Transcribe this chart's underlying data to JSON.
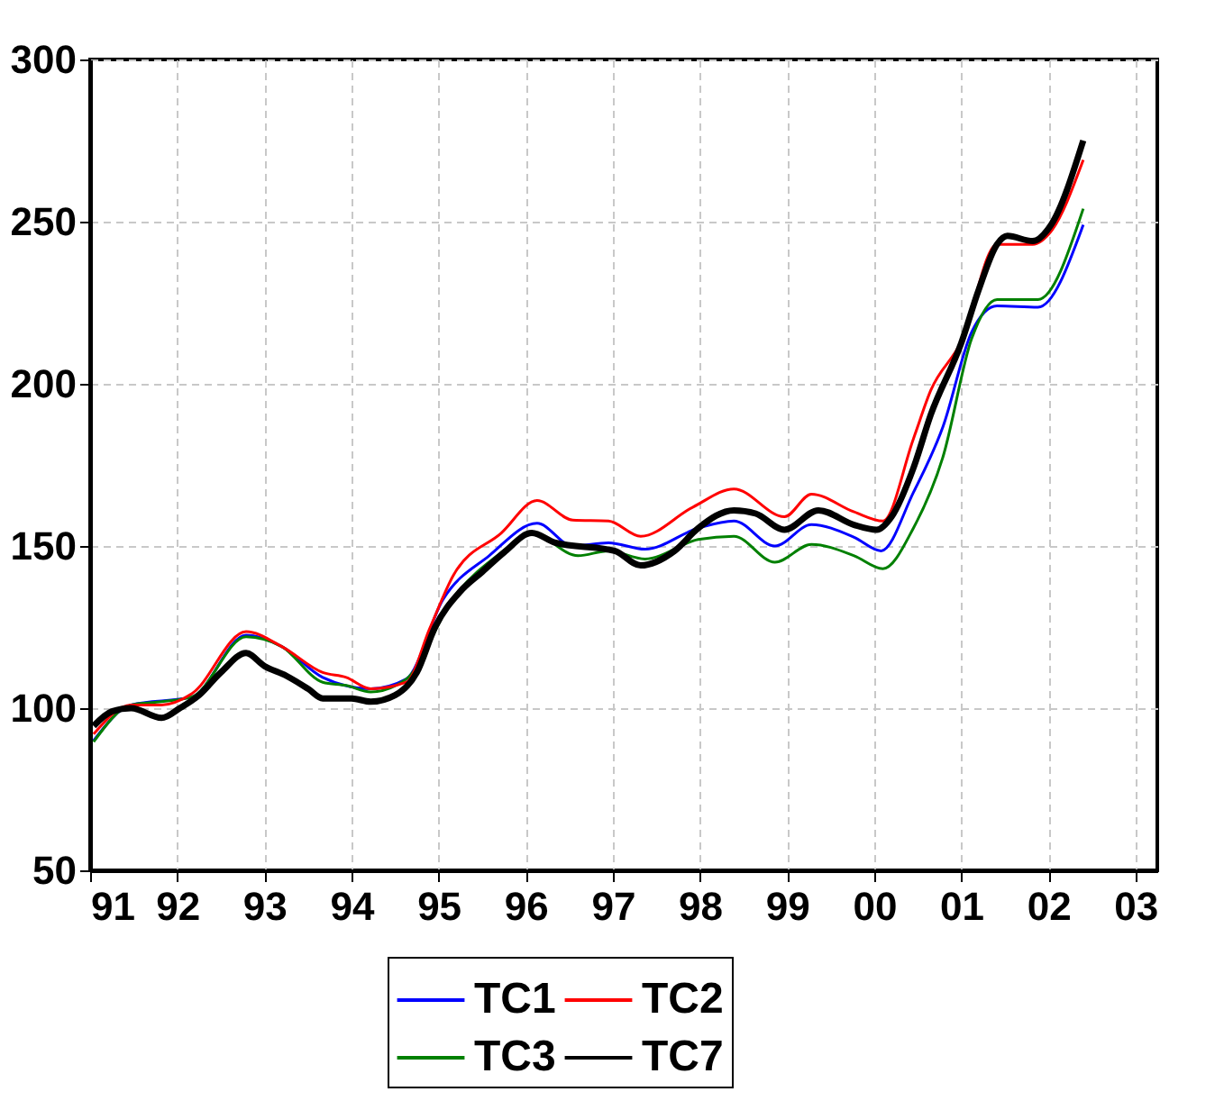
{
  "chart_data": {
    "type": "line",
    "xlim": [
      1991,
      2003.25
    ],
    "ylim": [
      50,
      300
    ],
    "xticks": [
      {
        "value": 1991,
        "label": "91"
      },
      {
        "value": 1992,
        "label": "92"
      },
      {
        "value": 1993,
        "label": "93"
      },
      {
        "value": 1994,
        "label": "94"
      },
      {
        "value": 1995,
        "label": "95"
      },
      {
        "value": 1996,
        "label": "96"
      },
      {
        "value": 1997,
        "label": "97"
      },
      {
        "value": 1998,
        "label": "98"
      },
      {
        "value": 1999,
        "label": "99"
      },
      {
        "value": 2000,
        "label": "00"
      },
      {
        "value": 2001,
        "label": "01"
      },
      {
        "value": 2002,
        "label": "02"
      },
      {
        "value": 2003,
        "label": "03"
      }
    ],
    "yticks": [
      50,
      100,
      150,
      200,
      250,
      300
    ],
    "grid": true,
    "legend": "bottom",
    "line_style": "solid",
    "marker": "none",
    "series": [
      {
        "name": "TC1",
        "color": "#0000ff",
        "x": [
          1991.04,
          1991.47,
          1992.17,
          1992.79,
          1993.2,
          1993.67,
          1994.22,
          1994.63,
          1995.05,
          1995.58,
          1996.13,
          1996.54,
          1996.95,
          1997.37,
          1997.98,
          1998.39,
          1998.86,
          1999.28,
          1999.77,
          2000.08,
          2000.45,
          2000.79,
          2001.12,
          2001.41,
          2001.88,
          2002.4
        ],
        "values": [
          90,
          101,
          103.5,
          122.5,
          119,
          109.5,
          106,
          109,
          133.5,
          147,
          157,
          150,
          151,
          149,
          155.5,
          157.7,
          150,
          156.6,
          152.7,
          148.5,
          166.5,
          186.8,
          216,
          224,
          223.6,
          249
        ]
      },
      {
        "name": "TC3",
        "color": "#008000",
        "x": [
          1991.04,
          1991.47,
          1991.82,
          1992.17,
          1992.79,
          1993.2,
          1993.67,
          1993.94,
          1994.22,
          1994.63,
          1995.17,
          1995.72,
          1996.07,
          1996.6,
          1996.95,
          1997.37,
          1997.98,
          1998.39,
          1998.86,
          1999.28,
          1999.77,
          2000.1,
          2000.45,
          2000.79,
          2001.12,
          2001.41,
          2001.88,
          2002.4
        ],
        "values": [
          89.6,
          101,
          102,
          103.5,
          122,
          119,
          108,
          107,
          105,
          109,
          134,
          148,
          154,
          147,
          148.5,
          146,
          152,
          153,
          145,
          150.5,
          147,
          143,
          155.5,
          177.5,
          214,
          226,
          226,
          254
        ]
      },
      {
        "name": "TC2",
        "color": "#ff0000",
        "x": [
          1991.04,
          1991.47,
          1991.82,
          1992.17,
          1992.79,
          1993.2,
          1993.67,
          1993.94,
          1994.22,
          1994.63,
          1994.9,
          1995.17,
          1995.72,
          1996.13,
          1996.54,
          1996.95,
          1997.32,
          1997.92,
          1998.39,
          1998.97,
          1999.28,
          1999.77,
          2000.1,
          2000.45,
          2000.65,
          2001.0,
          2001.41,
          2001.82,
          2002.03,
          2002.4
        ],
        "values": [
          92,
          101,
          101,
          104.5,
          123.6,
          119,
          111,
          109.5,
          106,
          108,
          124.7,
          141,
          154,
          164,
          158,
          157.7,
          153,
          162,
          167.6,
          159,
          166,
          160.5,
          157.7,
          183,
          198,
          213,
          243,
          243,
          247,
          269
        ]
      },
      {
        "name": "TC7",
        "color": "#000000",
        "x": [
          1991.04,
          1991.25,
          1991.47,
          1991.82,
          1992.03,
          1992.25,
          1992.5,
          1992.79,
          1993.0,
          1993.25,
          1993.5,
          1993.67,
          1994.0,
          1994.22,
          1994.5,
          1994.75,
          1994.96,
          1995.25,
          1995.5,
          1995.75,
          1996.07,
          1996.34,
          1997.02,
          1997.32,
          1997.71,
          1997.98,
          1998.39,
          1998.64,
          1998.97,
          1999.36,
          1999.77,
          2000.03,
          2000.2,
          2000.45,
          2000.65,
          2001.0,
          2001.2,
          2001.41,
          2001.53,
          2001.82,
          2002.03,
          2002.4
        ],
        "values": [
          94.5,
          99,
          100,
          97,
          100,
          104,
          111,
          117,
          113,
          110,
          106,
          103,
          103,
          102,
          104,
          111,
          125,
          136,
          142,
          148,
          154,
          151,
          148.5,
          144,
          148.5,
          155.5,
          161,
          160,
          155,
          161,
          156.5,
          155,
          159,
          174,
          190.5,
          212.6,
          229,
          243,
          245.6,
          244,
          249,
          275
        ]
      }
    ]
  }
}
